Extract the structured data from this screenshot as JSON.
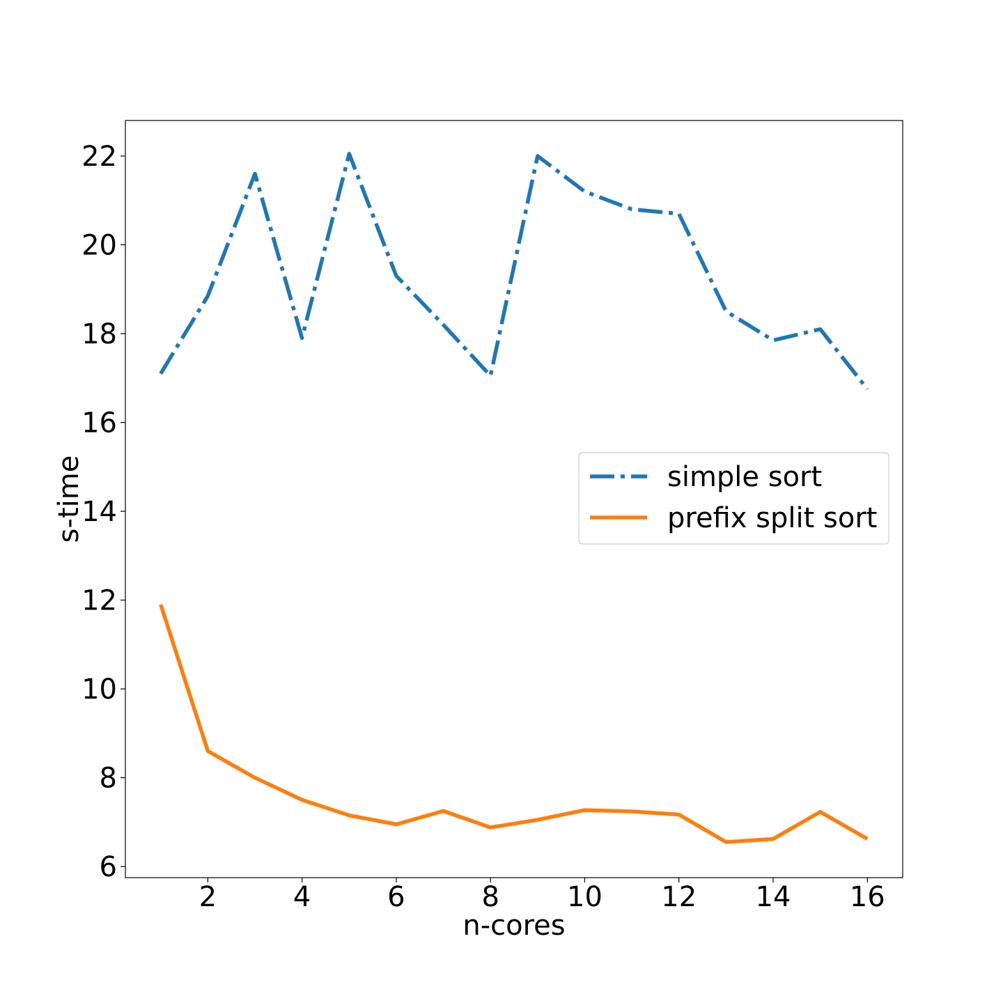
{
  "chart_data": {
    "type": "line",
    "xlabel": "n-cores",
    "ylabel": "s-time",
    "xlim": [
      0.25,
      16.75
    ],
    "ylim": [
      5.75,
      22.8
    ],
    "xticks": [
      2,
      4,
      6,
      8,
      10,
      12,
      14,
      16
    ],
    "yticks": [
      6,
      8,
      10,
      12,
      14,
      16,
      18,
      20,
      22
    ],
    "grid": false,
    "legend_position": "center-right",
    "x": [
      1,
      2,
      3,
      4,
      5,
      6,
      7,
      8,
      9,
      10,
      11,
      12,
      13,
      14,
      15,
      16
    ],
    "series": [
      {
        "name": "simple sort",
        "style": "dashdot",
        "color": "#1f77b4",
        "values": [
          17.1,
          18.85,
          21.6,
          17.9,
          22.05,
          19.3,
          18.2,
          17.05,
          22.0,
          21.2,
          20.8,
          20.7,
          18.5,
          17.85,
          18.1,
          16.75
        ]
      },
      {
        "name": "prefix split sort",
        "style": "solid",
        "color": "#ff7f0e",
        "values": [
          11.9,
          8.6,
          8.0,
          7.5,
          7.15,
          6.95,
          7.25,
          6.88,
          7.05,
          7.27,
          7.24,
          7.17,
          6.55,
          6.62,
          7.23,
          6.62
        ]
      }
    ]
  }
}
